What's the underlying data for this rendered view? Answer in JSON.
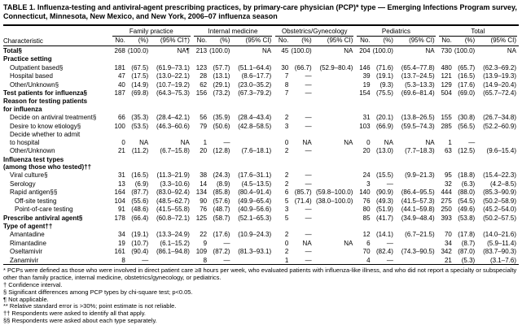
{
  "title": "TABLE 1. Influenza-testing and antiviral-agent prescribing practices, by primary-care physician (PCP)* type — Emerging Infections Program survey, Connecticut, Minnesota, New Mexico, and New York, 2006–07 influenza season",
  "table": {
    "characteristic_header": "Characteristic",
    "groups": [
      "Family practice",
      "Internal medicine",
      "Obstetrics/Gynecology",
      "Pediatrics",
      "Total"
    ],
    "subcols": [
      [
        "No.",
        "(%)",
        "(95% CI†)"
      ],
      [
        "No.",
        "(%)",
        "(95% CI)"
      ],
      [
        "No.",
        "(%)",
        "(95% CI)"
      ],
      [
        "No.",
        "(%)",
        "(95% CI)"
      ],
      [
        "No.",
        "(%)",
        "(95% CI)"
      ]
    ],
    "rows": [
      {
        "label": "Total§",
        "bold": true,
        "indent": 0,
        "cells": [
          "268",
          "(100.0)",
          "NA¶",
          "213",
          "(100.0)",
          "NA",
          "45",
          "(100.0)",
          "NA",
          "204",
          "(100.0)",
          "NA",
          "730",
          "(100.0)",
          "NA"
        ]
      },
      {
        "label": "Practice setting",
        "section": true
      },
      {
        "label": "Outpatient based§",
        "indent": 1,
        "cells": [
          "181",
          "(67.5)",
          "(61.9–73.1)",
          "123",
          "(57.7)",
          "(51.1–64.4)",
          "30",
          "(66.7)",
          "(52.9–80.4)",
          "146",
          "(71.6)",
          "(65.4–77.8)",
          "480",
          "(65.7)",
          "(62.3–69.2)"
        ]
      },
      {
        "label": "Hospital based",
        "indent": 1,
        "cells": [
          "47",
          "(17.5)",
          "(13.0–22.1)",
          "28",
          "(13.1)",
          "(8.6–17.7)",
          "7",
          "—",
          "",
          "39",
          "(19.1)",
          "(13.7–24.5)",
          "121",
          "(16.5)",
          "(13.9–19.3)"
        ]
      },
      {
        "label": "Other/Unknown§",
        "indent": 1,
        "cells": [
          "40",
          "(14.9)",
          "(10.7–19.2)",
          "62",
          "(29.1)",
          "(23.0–35.2)",
          "8",
          "—",
          "",
          "19",
          "(9.3)",
          "(5.3–13.3)",
          "129",
          "(17.6)",
          "(14.9–20.4)"
        ]
      },
      {
        "label": "Test patients for influenza§",
        "bold": true,
        "indent": 0,
        "cells": [
          "187",
          "(69.8)",
          "(64.3–75.3)",
          "156",
          "(73.2)",
          "(67.3–79.2)",
          "7",
          "—",
          "",
          "154",
          "(75.5)",
          "(69.6–81.4)",
          "504",
          "(69.0)",
          "(65.7–72.4)"
        ]
      },
      {
        "label": "Reason for testing patients\nfor influenza",
        "section": true
      },
      {
        "label": "Decide on antiviral treatment§",
        "indent": 1,
        "cells": [
          "66",
          "(35.3)",
          "(28.4–42.1)",
          "56",
          "(35.9)",
          "(28.4–43.4)",
          "2",
          "—",
          "",
          "31",
          "(20.1)",
          "(13.8–26.5)",
          "155",
          "(30.8)",
          "(26.7–34.8)"
        ]
      },
      {
        "label": "Desire to know etiology§",
        "indent": 1,
        "cells": [
          "100",
          "(53.5)",
          "(46.3–60.6)",
          "79",
          "(50.6)",
          "(42.8–58.5)",
          "3",
          "—",
          "",
          "103",
          "(66.9)",
          "(59.5–74.3)",
          "285",
          "(56.5)",
          "(52.2–60.9)"
        ]
      },
      {
        "label": "Decide whether to admit\nto hospital",
        "indent": 1,
        "cells": [
          "0",
          "NA",
          "NA",
          "1",
          "—",
          "",
          "0",
          "NA",
          "NA",
          "0",
          "NA",
          "NA",
          "1",
          "—",
          ""
        ]
      },
      {
        "label": "Other/Unknown",
        "indent": 1,
        "cells": [
          "21",
          "(11.2)",
          "(6.7–15.8)",
          "20",
          "(12.8)",
          "(7.6–18.1)",
          "2",
          "—",
          "",
          "20",
          "(13.0)",
          "(7.7–18.3)",
          "63",
          "(12.5)",
          "(9.6–15.4)"
        ]
      },
      {
        "label": "Influenza test types\n(among those who tested)††",
        "section": true
      },
      {
        "label": "Viral culture§",
        "indent": 1,
        "cells": [
          "31",
          "(16.5)",
          "(11.3–21.9)",
          "38",
          "(24.3)",
          "(17.6–31.1)",
          "2",
          "—",
          "",
          "24",
          "(15.5)",
          "(9.9–21.3)",
          "95",
          "(18.8)",
          "(15.4–22.3)"
        ]
      },
      {
        "label": "Serology",
        "indent": 1,
        "cells": [
          "13",
          "(6.9)",
          "(3.3–10.6)",
          "14",
          "(8.9)",
          "(4.5–13.5)",
          "2",
          "—",
          "",
          "3",
          "—",
          "",
          "32",
          "(6.3)",
          "(4.2–8.5)"
        ]
      },
      {
        "label": "Rapid antigen§§",
        "indent": 1,
        "cells": [
          "164",
          "(87.7)",
          "(83.0–92.4)",
          "134",
          "(85.8)",
          "(80.4–91.4)",
          "6",
          "(85.7)",
          "(59.8–100.0)",
          "140",
          "(90.9)",
          "(86.4–95.5)",
          "444",
          "(88.0)",
          "(85.3–90.9)"
        ]
      },
      {
        "label": "Off-site testing",
        "indent": 2,
        "cells": [
          "104",
          "(55.6)",
          "(48.5–62.7)",
          "90",
          "(57.6)",
          "(49.9–65.4)",
          "5",
          "(71.4)",
          "(38.0–100.0)",
          "76",
          "(49.3)",
          "(41.5–57.3)",
          "275",
          "(54.5)",
          "(50.2–58.9)"
        ]
      },
      {
        "label": "Point-of-care testing",
        "indent": 2,
        "cells": [
          "91",
          "(48.6)",
          "(41.5–55.8)",
          "76",
          "(48.7)",
          "(40.9–56.6)",
          "3",
          "—",
          "",
          "80",
          "(51.9)",
          "(44.1–59.8)",
          "250",
          "(49.6)",
          "(45.2–54.0)"
        ]
      },
      {
        "label": "Prescribe antiviral agent§",
        "bold": true,
        "indent": 0,
        "cells": [
          "178",
          "(66.4)",
          "(60.8–72.1)",
          "125",
          "(58.7)",
          "(52.1–65.3)",
          "5",
          "—",
          "",
          "85",
          "(41.7)",
          "(34.9–48.4)",
          "393",
          "(53.8)",
          "(50.2–57.5)"
        ]
      },
      {
        "label": "Type of agent††",
        "section": true
      },
      {
        "label": "Amantadine",
        "indent": 1,
        "cells": [
          "34",
          "(19.1)",
          "(13.3–24.9)",
          "22",
          "(17.6)",
          "(10.9–24.3)",
          "2",
          "—",
          "",
          "12",
          "(14.1)",
          "(6.7–21.5)",
          "70",
          "(17.8)",
          "(14.0–21.6)"
        ]
      },
      {
        "label": "Rimantadine",
        "indent": 1,
        "cells": [
          "19",
          "(10.7)",
          "(6.1–15.2)",
          "9",
          "—",
          "",
          "0",
          "NA",
          "NA",
          "6",
          "—",
          "",
          "34",
          "(8.7)",
          "(5.9–11.4)"
        ]
      },
      {
        "label": "Oseltamivir",
        "indent": 1,
        "cells": [
          "161",
          "(90.4)",
          "(86.1–94.8)",
          "109",
          "(87.2)",
          "(81.3–93.1)",
          "2",
          "—",
          "",
          "70",
          "(82.4)",
          "(74.3–90.5)",
          "342",
          "(87.0)",
          "(83.7–90.3)"
        ]
      },
      {
        "label": "Zanamivir",
        "indent": 1,
        "cells": [
          "8",
          "—",
          "",
          "8",
          "—",
          "",
          "1",
          "—",
          "",
          "4",
          "—",
          "",
          "21",
          "(5.3)",
          "(3.1–7.6)"
        ]
      }
    ]
  },
  "footnotes": [
    "* PCPs were defined as those who were involved in direct patient care ≥8 hours per week, who evaluated patients with influenza-like illness, and who did not report a specialty or subspecialty other than family practice, internal medicine, obstetrics/gynecology, or pediatrics.",
    "† Confidence interval.",
    "§ Significant differences among PCP types by chi-square test; p<0.05.",
    "¶ Not applicable.",
    "** Relative standard error is >30%; point estimate is not reliable.",
    "†† Respondents were asked to identify all that apply.",
    "§§ Respondents were asked about each type separately."
  ]
}
